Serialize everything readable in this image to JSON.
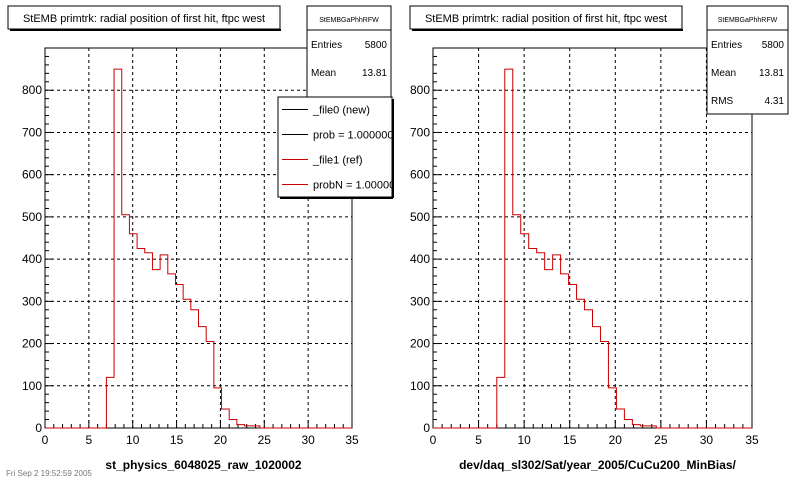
{
  "footer": {
    "timestamp": "Fri Sep 2 19:52:59 2005"
  },
  "legend": {
    "entries": [
      {
        "label": "_file0 (new)",
        "color": "#000000"
      },
      {
        "label": "prob = 1.000000",
        "color": "#000000"
      },
      {
        "label": "_file1 (ref)",
        "color": "#cc0000"
      },
      {
        "label": "probN = 1.000000",
        "color": "#cc0000"
      }
    ]
  },
  "chart_data": [
    {
      "type": "histogram",
      "title": "StEMB primtrk: radial position of first hit, ftpc west",
      "xlabel": "st_physics_6048025_raw_1020002",
      "ylabel": "",
      "xlim": [
        0,
        35
      ],
      "ylim": [
        0,
        900
      ],
      "x_ticks": [
        0,
        5,
        10,
        15,
        20,
        25,
        30,
        35
      ],
      "y_ticks": [
        0,
        100,
        200,
        300,
        400,
        500,
        600,
        700,
        800
      ],
      "grid": true,
      "legend_position": "top-right",
      "stats": {
        "name": "StEMBGaPhhRFW",
        "rows": [
          {
            "label": "Entries",
            "value": "5800"
          },
          {
            "label": "Mean",
            "value": "13.81"
          },
          {
            "label": "RMS",
            "value": "4.31"
          }
        ]
      },
      "bin_width": 0.875,
      "bin_edges_start": 7.0,
      "series": [
        {
          "color": "#cc0000",
          "values": [
            120,
            850,
            505,
            460,
            425,
            415,
            375,
            410,
            365,
            340,
            305,
            280,
            240,
            205,
            95,
            45,
            20,
            8,
            5,
            5,
            0
          ]
        }
      ]
    },
    {
      "type": "histogram",
      "title": "StEMB primtrk: radial position of first hit, ftpc west",
      "xlabel": "dev/daq_sl302/Sat/year_2005/CuCu200_MinBias/",
      "ylabel": "",
      "xlim": [
        0,
        35
      ],
      "ylim": [
        0,
        900
      ],
      "x_ticks": [
        0,
        5,
        10,
        15,
        20,
        25,
        30,
        35
      ],
      "y_ticks": [
        0,
        100,
        200,
        300,
        400,
        500,
        600,
        700,
        800
      ],
      "grid": true,
      "stats": {
        "name": "StEMBGaPhhRFW",
        "rows": [
          {
            "label": "Entries",
            "value": "5800"
          },
          {
            "label": "Mean",
            "value": "13.81"
          },
          {
            "label": "RMS",
            "value": "4.31"
          }
        ]
      },
      "bin_width": 0.875,
      "bin_edges_start": 7.0,
      "series": [
        {
          "color": "#cc0000",
          "values": [
            120,
            850,
            505,
            460,
            425,
            415,
            375,
            410,
            365,
            340,
            305,
            280,
            240,
            205,
            95,
            45,
            20,
            8,
            5,
            5,
            0
          ]
        }
      ]
    }
  ]
}
